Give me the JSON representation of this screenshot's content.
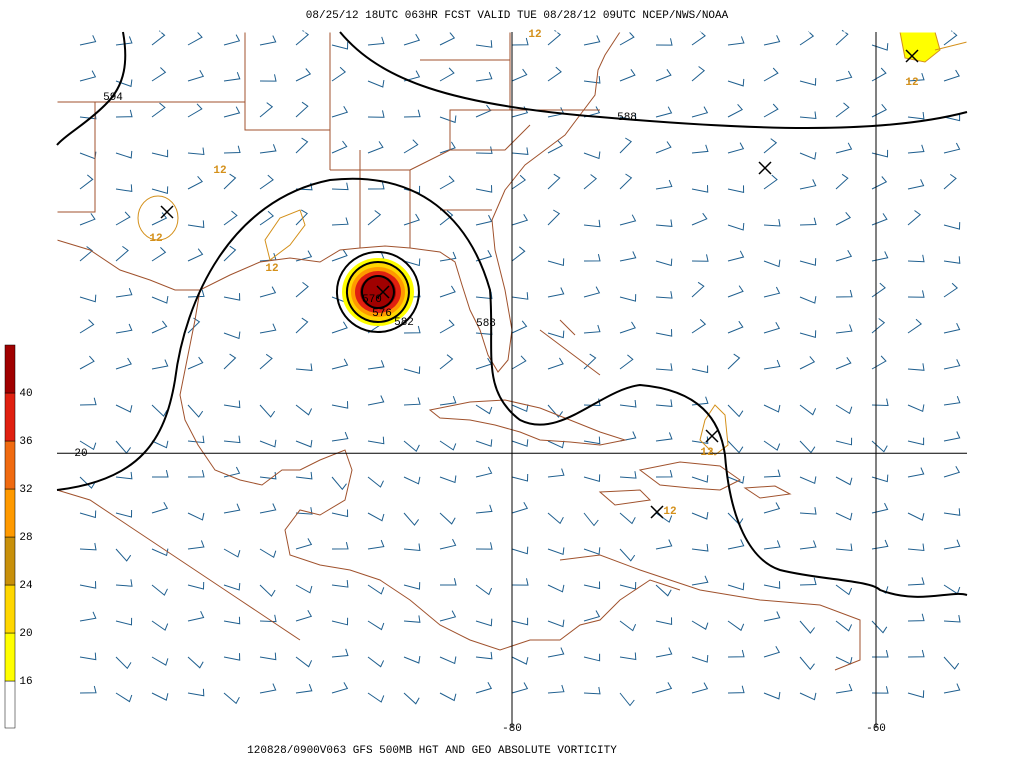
{
  "header": {
    "title": "08/25/12 18UTC  063HR  FCST VALID TUE 08/28/12 09UTC  NCEP/NWS/NOAA"
  },
  "footer": {
    "caption": "120828/0900V063 GFS 500MB HGT AND GEO ABSOLUTE VORTICITY"
  },
  "map": {
    "lonlim": [
      -105,
      -55
    ],
    "latlim": [
      5,
      43
    ],
    "lons": [
      -80,
      -60
    ],
    "lats": [
      20
    ],
    "height_contour_labels": [
      594,
      588,
      588,
      582,
      576,
      570
    ],
    "vorticity_contour_labels": [
      12,
      12,
      12,
      12,
      12,
      12,
      12
    ]
  },
  "colorbar": {
    "levels": [
      16,
      20,
      24,
      28,
      32,
      36,
      40
    ],
    "colors": [
      "#ffffff",
      "#ffff00",
      "#ffd700",
      "#c8900a",
      "#ff9a00",
      "#f06a10",
      "#e02010",
      "#a00000"
    ]
  }
}
